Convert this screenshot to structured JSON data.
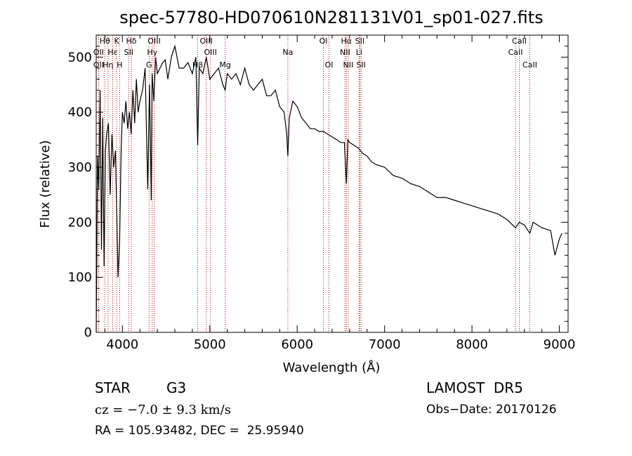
{
  "chart_data": {
    "type": "line",
    "title": "spec-57780-HD070610N281131V01_sp01-027.fits",
    "xlabel": "Wavelength (Å)",
    "ylabel": "Flux (relative)",
    "xlim": [
      3700,
      9100
    ],
    "ylim": [
      0,
      540
    ],
    "xticks": [
      4000,
      5000,
      6000,
      7000,
      8000,
      9000
    ],
    "yticks": [
      0,
      100,
      200,
      300,
      400,
      500
    ],
    "line_color": "#000000",
    "marker_color": "#c00000",
    "spectrum": {
      "x": [
        3700,
        3715,
        3730,
        3745,
        3760,
        3775,
        3790,
        3805,
        3820,
        3840,
        3860,
        3880,
        3900,
        3920,
        3935,
        3950,
        3968,
        3985,
        4000,
        4020,
        4040,
        4060,
        4080,
        4100,
        4120,
        4140,
        4160,
        4180,
        4200,
        4230,
        4260,
        4290,
        4310,
        4330,
        4340,
        4360,
        4380,
        4400,
        4430,
        4460,
        4490,
        4520,
        4560,
        4600,
        4650,
        4700,
        4750,
        4800,
        4840,
        4861,
        4880,
        4920,
        4960,
        5000,
        5050,
        5100,
        5150,
        5175,
        5200,
        5250,
        5300,
        5350,
        5400,
        5450,
        5500,
        5550,
        5600,
        5650,
        5700,
        5750,
        5800,
        5850,
        5880,
        5893,
        5910,
        5950,
        6000,
        6050,
        6100,
        6150,
        6200,
        6250,
        6300,
        6350,
        6400,
        6450,
        6500,
        6540,
        6563,
        6580,
        6600,
        6650,
        6700,
        6750,
        6800,
        6850,
        6900,
        7000,
        7100,
        7200,
        7300,
        7400,
        7500,
        7600,
        7650,
        7700,
        7800,
        7900,
        8000,
        8100,
        8200,
        8300,
        8400,
        8498,
        8542,
        8600,
        8662,
        8700,
        8800,
        8900,
        8950,
        9000,
        9030
      ],
      "y": [
        0,
        320,
        260,
        440,
        150,
        390,
        120,
        330,
        360,
        380,
        250,
        360,
        300,
        330,
        220,
        100,
        170,
        330,
        400,
        380,
        420,
        370,
        400,
        360,
        440,
        380,
        460,
        400,
        420,
        440,
        480,
        260,
        450,
        240,
        470,
        420,
        500,
        470,
        480,
        490,
        495,
        460,
        500,
        520,
        480,
        480,
        490,
        470,
        500,
        340,
        480,
        470,
        500,
        460,
        470,
        480,
        450,
        440,
        470,
        460,
        470,
        450,
        480,
        450,
        440,
        450,
        460,
        430,
        430,
        440,
        410,
        400,
        360,
        320,
        390,
        420,
        410,
        390,
        380,
        370,
        370,
        365,
        365,
        360,
        355,
        350,
        345,
        345,
        270,
        350,
        345,
        340,
        335,
        325,
        320,
        310,
        305,
        300,
        285,
        280,
        270,
        265,
        255,
        245,
        245,
        245,
        240,
        235,
        230,
        225,
        220,
        215,
        205,
        190,
        200,
        195,
        180,
        200,
        190,
        185,
        140,
        170,
        180
      ]
    },
    "lines": [
      {
        "label": "Hδ",
        "x": 4102,
        "row": 1
      },
      {
        "label": "Hγ",
        "x": 4341,
        "row": 2
      },
      {
        "label": "Hα",
        "x": 6563,
        "row": 1
      },
      {
        "label": "K",
        "x": 3934,
        "row": 1
      },
      {
        "label": "H",
        "x": 3968,
        "row": 3
      },
      {
        "label": "G",
        "x": 4305,
        "row": 3
      },
      {
        "label": "Mg",
        "x": 5175,
        "row": 3
      },
      {
        "label": "Na",
        "x": 5893,
        "row": 2
      },
      {
        "label": "OII",
        "x": 3727,
        "row": 3
      },
      {
        "label": "Hη",
        "x": 3835,
        "row": 3
      },
      {
        "label": "Hε",
        "x": 3889,
        "row": 2
      },
      {
        "label": "Hθ",
        "x": 3798,
        "row": 1
      },
      {
        "label": "OII",
        "x": 3727,
        "row": 2
      },
      {
        "label": "SII",
        "x": 4072,
        "row": 2
      },
      {
        "label": "OIII",
        "x": 4363,
        "row": 1
      },
      {
        "label": "OIII",
        "x": 4959,
        "row": 1
      },
      {
        "label": "OIII",
        "x": 5007,
        "row": 2
      },
      {
        "label": "Hβ",
        "x": 4861,
        "row": 3
      },
      {
        "label": "OI",
        "x": 6300,
        "row": 1
      },
      {
        "label": "OI",
        "x": 6364,
        "row": 3
      },
      {
        "label": "NII",
        "x": 6548,
        "row": 2
      },
      {
        "label": "NII",
        "x": 6584,
        "row": 3
      },
      {
        "label": "SII",
        "x": 6717,
        "row": 1
      },
      {
        "label": "SII",
        "x": 6731,
        "row": 3
      },
      {
        "label": "Li",
        "x": 6708,
        "row": 2
      },
      {
        "label": "CaII",
        "x": 8498,
        "row": 2
      },
      {
        "label": "CaII",
        "x": 8542,
        "row": 1
      },
      {
        "label": "CaII",
        "x": 8662,
        "row": 3
      }
    ]
  },
  "info": {
    "object_class": "STAR",
    "subclass": "G3",
    "survey": "LAMOST  DR5",
    "cz": "cz = −7.0 ± 9.3 km/s",
    "obs_date": "Obs−Date: 20170126",
    "coords": "RA = 105.93482, DEC =  25.95940"
  }
}
